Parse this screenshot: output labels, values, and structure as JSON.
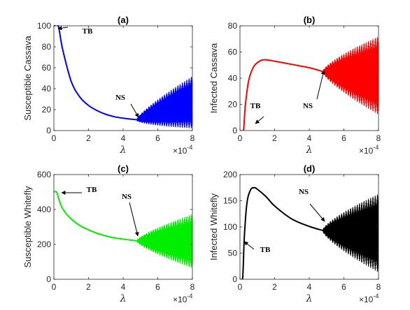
{
  "chart_data": [
    {
      "id": "a",
      "type": "line",
      "title": "(a)",
      "ylabel": "Susceptible Cassava",
      "xlabel": "λ",
      "x_multiplier": "×10",
      "x_exponent": "-4",
      "xlim": [
        0,
        8
      ],
      "ylim": [
        0,
        100
      ],
      "xticks": [
        0,
        2,
        4,
        6,
        8
      ],
      "yticks": [
        0,
        20,
        40,
        60,
        80,
        100
      ],
      "color": "#0000ff",
      "series": [
        {
          "kind": "smooth",
          "x": [
            0,
            0.25,
            0.5,
            1,
            1.5,
            2,
            2.5,
            3,
            3.5,
            4,
            4.5,
            4.8
          ],
          "values": [
            100,
            100,
            78,
            47,
            32,
            24,
            19,
            15.5,
            13.2,
            11.8,
            10.8,
            10.3
          ]
        },
        {
          "kind": "oscillation",
          "x_start": 4.8,
          "x_end": 8,
          "center_start": 10.3,
          "center_end": 27,
          "amp_start": 1,
          "amp_end": 25,
          "min_floor": 0
        }
      ],
      "annotations": [
        {
          "text": "TB",
          "x": 1.9,
          "y": 84
        },
        {
          "text": "NS",
          "x": 4.3,
          "y": 32
        }
      ]
    },
    {
      "id": "b",
      "type": "line",
      "title": "(b)",
      "ylabel": "Infected Cassava",
      "xlabel": "λ",
      "x_multiplier": "×10",
      "x_exponent": "-4",
      "xlim": [
        0,
        8
      ],
      "ylim": [
        0,
        80
      ],
      "xticks": [
        0,
        2,
        4,
        6,
        8
      ],
      "yticks": [
        0,
        20,
        40,
        60,
        80
      ],
      "color": "#ff0000",
      "series": [
        {
          "kind": "smooth",
          "x": [
            0,
            0.2,
            0.3,
            0.5,
            0.8,
            1.2,
            1.5,
            2,
            3,
            4,
            4.8
          ],
          "values": [
            0,
            0,
            18,
            38,
            49,
            53.5,
            54,
            53,
            50.5,
            48,
            45
          ]
        },
        {
          "kind": "oscillation",
          "x_start": 4.8,
          "x_end": 8,
          "center_start": 45,
          "center_end": 42,
          "amp_start": 1,
          "amp_end": 30,
          "min_floor": 0
        }
      ],
      "annotations": [
        {
          "text": "TB",
          "x": 1.3,
          "y": 18
        },
        {
          "text": "NS",
          "x": 4.1,
          "y": 18
        }
      ]
    },
    {
      "id": "c",
      "type": "line",
      "title": "(c)",
      "ylabel": "Susceptible Whitefly",
      "xlabel": "λ",
      "x_multiplier": "×10",
      "x_exponent": "-4",
      "xlim": [
        0,
        8
      ],
      "ylim": [
        0,
        600
      ],
      "xticks": [
        0,
        2,
        4,
        6,
        8
      ],
      "yticks": [
        0,
        200,
        400,
        600
      ],
      "color": "#00ee00",
      "series": [
        {
          "kind": "smooth",
          "x": [
            0,
            0.15,
            0.3,
            0.5,
            1,
            1.5,
            2,
            2.5,
            3,
            3.5,
            4,
            4.8
          ],
          "values": [
            500,
            500,
            455,
            405,
            345,
            308,
            283,
            263,
            248,
            237,
            230,
            220
          ]
        },
        {
          "kind": "oscillation",
          "x_start": 4.8,
          "x_end": 8,
          "center_start": 220,
          "center_end": 218,
          "amp_start": 5,
          "amp_end": 155,
          "min_floor": 0
        }
      ],
      "annotations": [
        {
          "text": "TB",
          "x": 2.15,
          "y": 500
        },
        {
          "text": "NS",
          "x": 4.4,
          "y": 460
        }
      ]
    },
    {
      "id": "d",
      "type": "line",
      "title": "(d)",
      "ylabel": "Infected Whitefly",
      "xlabel": "λ",
      "x_multiplier": "×10",
      "x_exponent": "-4",
      "xlim": [
        0,
        8
      ],
      "ylim": [
        0,
        200
      ],
      "xticks": [
        0,
        2,
        4,
        6,
        8
      ],
      "yticks": [
        0,
        50,
        100,
        150,
        200
      ],
      "color": "#000000",
      "series": [
        {
          "kind": "smooth",
          "x": [
            0,
            0.15,
            0.25,
            0.4,
            0.6,
            0.8,
            1,
            1.5,
            2,
            3,
            4,
            4.8
          ],
          "values": [
            0,
            0,
            80,
            145,
            170,
            175,
            172,
            158,
            140,
            115,
            101,
            93
          ]
        },
        {
          "kind": "oscillation",
          "x_start": 4.8,
          "x_end": 8,
          "center_start": 93,
          "center_end": 88,
          "amp_start": 3,
          "amp_end": 75,
          "min_floor": 0
        }
      ],
      "annotations": [
        {
          "text": "TB",
          "x": 1.6,
          "y": 58
        },
        {
          "text": "NS",
          "x": 3.95,
          "y": 163
        }
      ]
    }
  ]
}
